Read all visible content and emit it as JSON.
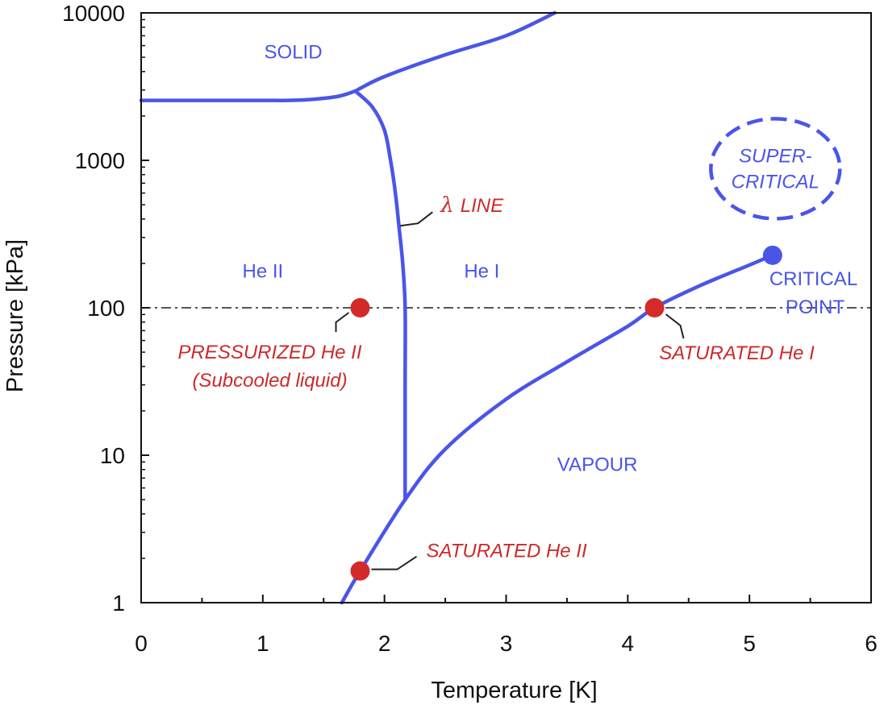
{
  "chart_data": {
    "type": "line",
    "title": "",
    "xlabel": "Temperature [K]",
    "ylabel": "Pressure [kPa]",
    "xlim": [
      0,
      6
    ],
    "ylim": [
      1,
      10000
    ],
    "yscale": "log",
    "x_ticks": [
      {
        "value": 0,
        "label": "0"
      },
      {
        "value": 1,
        "label": "1"
      },
      {
        "value": 2,
        "label": "2"
      },
      {
        "value": 3,
        "label": "3"
      },
      {
        "value": 4,
        "label": "4"
      },
      {
        "value": 5,
        "label": "5"
      },
      {
        "value": 6,
        "label": "6"
      }
    ],
    "y_ticks": [
      {
        "value": 1,
        "label": "1"
      },
      {
        "value": 10,
        "label": "10"
      },
      {
        "value": 100,
        "label": "100"
      },
      {
        "value": 1000,
        "label": "1000"
      },
      {
        "value": 10000,
        "label": "10000"
      }
    ],
    "grid": false,
    "colors": {
      "line": "#4a55e8",
      "region_text": "#4a55e8",
      "annotation_text": "#cc2a2a",
      "marker": "#d42a2a",
      "critical_marker": "#4a55e8",
      "reference_line": "#555555",
      "leader": "#222222"
    },
    "series": [
      {
        "name": "melting curve (solid boundary)",
        "points": [
          [
            0,
            2550
          ],
          [
            0.5,
            2550
          ],
          [
            1.0,
            2550
          ],
          [
            1.3,
            2560
          ],
          [
            1.6,
            2700
          ],
          [
            1.76,
            2950
          ]
        ]
      },
      {
        "name": "solid / He I boundary",
        "points": [
          [
            1.76,
            2950
          ],
          [
            2.0,
            3700
          ],
          [
            2.5,
            5200
          ],
          [
            3.0,
            7000
          ],
          [
            3.4,
            10000
          ]
        ]
      },
      {
        "name": "lambda line",
        "points": [
          [
            1.76,
            2950
          ],
          [
            1.9,
            2300
          ],
          [
            2.0,
            1600
          ],
          [
            2.05,
            1000
          ],
          [
            2.09,
            600
          ],
          [
            2.12,
            350
          ],
          [
            2.15,
            200
          ],
          [
            2.17,
            100
          ],
          [
            2.17,
            30
          ],
          [
            2.17,
            5
          ]
        ]
      },
      {
        "name": "vapour pressure curve",
        "points": [
          [
            1.65,
            1.0
          ],
          [
            1.8,
            1.64
          ],
          [
            2.17,
            5.0
          ],
          [
            2.5,
            11
          ],
          [
            3.0,
            24
          ],
          [
            3.5,
            43
          ],
          [
            4.0,
            75
          ],
          [
            4.22,
            100
          ],
          [
            4.6,
            142
          ],
          [
            5.0,
            195
          ],
          [
            5.19,
            227
          ]
        ]
      }
    ],
    "reference_line": {
      "name": "1 atm (100 kPa)",
      "y": 100,
      "style": "dash-dot"
    },
    "markers": [
      {
        "name": "pressurized-he-ii-point",
        "x": 1.8,
        "y": 100
      },
      {
        "name": "saturated-he-i-point",
        "x": 4.22,
        "y": 100
      },
      {
        "name": "saturated-he-ii-point",
        "x": 1.8,
        "y": 1.64
      }
    ],
    "critical_point": {
      "x": 5.19,
      "y": 227
    },
    "regions": [
      {
        "name": "region-solid",
        "text": "SOLID",
        "x": 1.25,
        "y": 4900
      },
      {
        "name": "region-he-ii",
        "text": "He II",
        "x": 1.0,
        "y": 160
      },
      {
        "name": "region-he-i",
        "text": "He I",
        "x": 2.8,
        "y": 160
      },
      {
        "name": "region-vapour",
        "text": "VAPOUR",
        "x": 3.75,
        "y": 7.8
      }
    ],
    "supercritical": {
      "lines": [
        "SUPER-",
        "CRITICAL"
      ],
      "x": 5.2,
      "y": 900
    },
    "critical_label": {
      "lines": [
        "CRITICAL",
        "POINT"
      ]
    },
    "annotations": {
      "lambda_line": {
        "symbol": "λ",
        "text": "LINE"
      },
      "pressurized": {
        "lines": [
          "PRESSURIZED He II",
          "(Subcooled liquid)"
        ]
      },
      "saturated_he_i": {
        "text": "SATURATED He I"
      },
      "saturated_he_ii": {
        "text": "SATURATED He II"
      }
    }
  }
}
